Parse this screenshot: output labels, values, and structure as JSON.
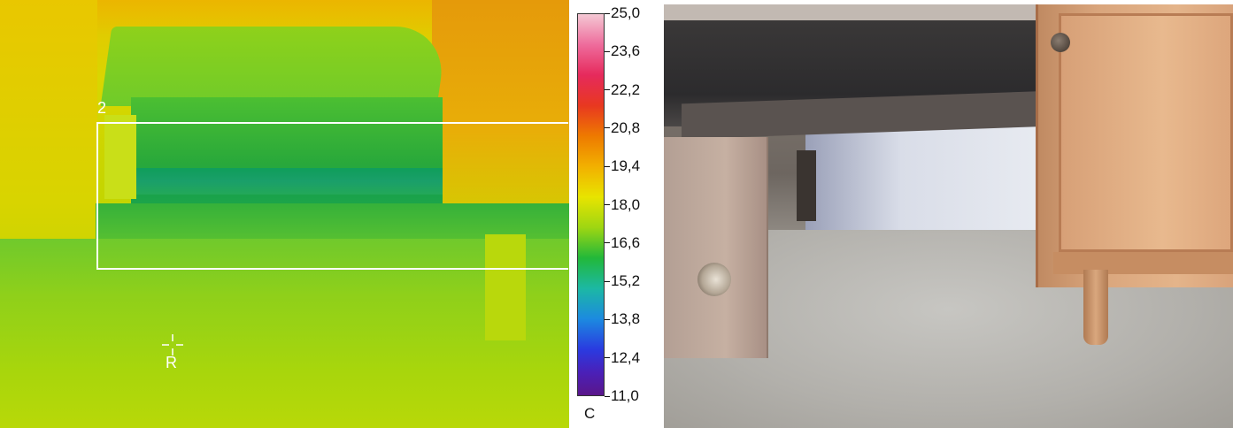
{
  "thermal": {
    "roi_label": "2",
    "marker_label": "R"
  },
  "scale": {
    "unit": "C",
    "ticks": [
      "25,0",
      "23,6",
      "22,2",
      "20,8",
      "19,4",
      "18,0",
      "16,6",
      "15,2",
      "13,8",
      "12,4",
      "11,0"
    ],
    "colors": {
      "max": "#f4c8d4",
      "mid": "#e8e400",
      "min": "#5a168a"
    }
  },
  "photo": {
    "icon": "under-bed-photo"
  }
}
